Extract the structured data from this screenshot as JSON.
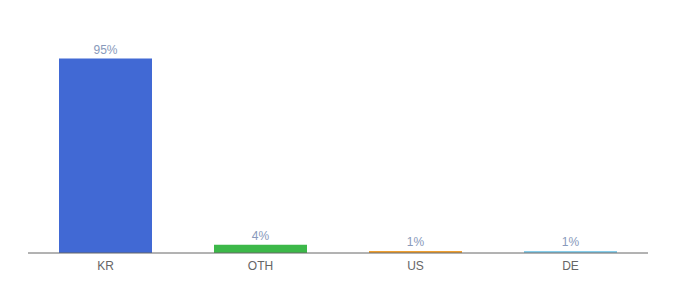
{
  "chart_data": {
    "type": "bar",
    "categories": [
      "KR",
      "OTH",
      "US",
      "DE"
    ],
    "values": [
      95,
      4,
      1,
      1
    ],
    "value_labels": [
      "95%",
      "4%",
      "1%",
      "1%"
    ],
    "colors": [
      "#4169d4",
      "#3cb849",
      "#f0a030",
      "#87ceeb"
    ],
    "ylim": [
      0,
      108
    ],
    "data_labels": true,
    "tick_labels": "x",
    "grid": false
  }
}
